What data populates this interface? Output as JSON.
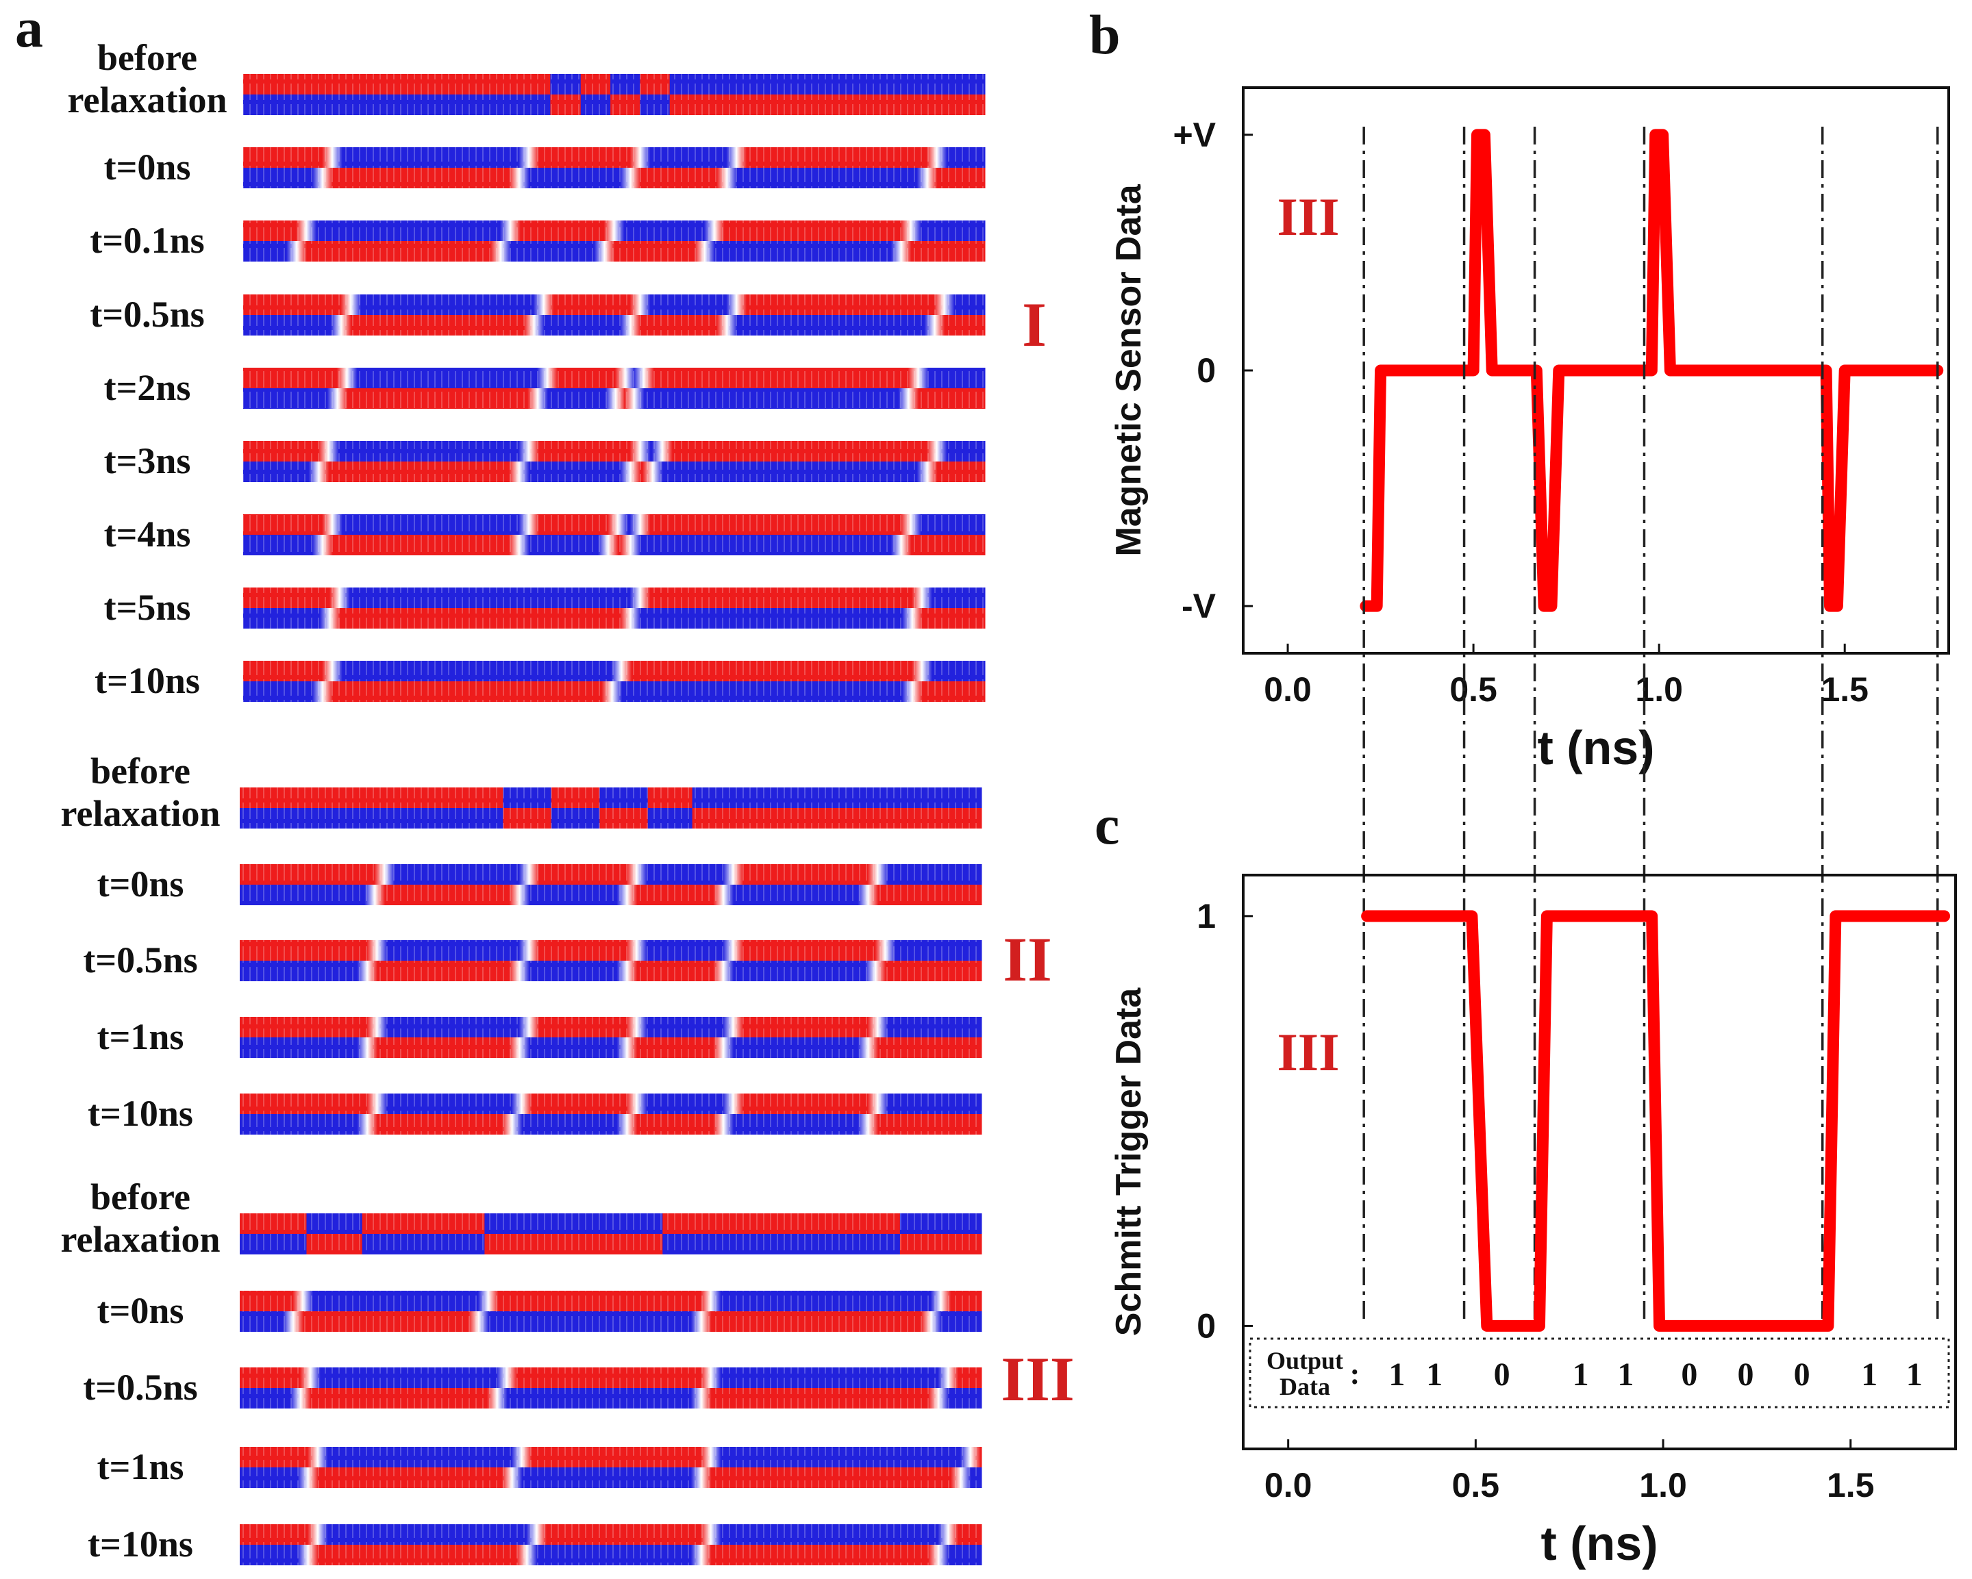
{
  "panel_labels": {
    "a": "a",
    "b": "b",
    "c": "c"
  },
  "colors": {
    "red": "#ee1c1c",
    "blue": "#2222dd",
    "curve": "#ff0000",
    "roman": "#d21f1f"
  },
  "groups": [
    {
      "roman": "I",
      "rows": [
        {
          "label": "before relaxation",
          "segments": [
            [
              "R",
              0.0
            ],
            [
              "B",
              0.414
            ],
            [
              "R",
              0.455
            ],
            [
              "B",
              0.495
            ],
            [
              "R",
              0.535
            ],
            [
              "B",
              0.575
            ]
          ]
        },
        {
          "label": "t=0ns",
          "segments": [
            [
              "R",
              0.0
            ],
            [
              "B",
              0.12
            ],
            [
              "R",
              0.385
            ],
            [
              "B",
              0.535
            ],
            [
              "R",
              0.665
            ],
            [
              "B",
              0.935
            ]
          ]
        },
        {
          "label": "t=0.1ns",
          "segments": [
            [
              "R",
              0.0
            ],
            [
              "B",
              0.085
            ],
            [
              "R",
              0.36
            ],
            [
              "B",
              0.5
            ],
            [
              "R",
              0.635
            ],
            [
              "B",
              0.9
            ]
          ]
        },
        {
          "label": "t=0.5ns",
          "segments": [
            [
              "R",
              0.0
            ],
            [
              "B",
              0.145
            ],
            [
              "R",
              0.405
            ],
            [
              "B",
              0.535
            ],
            [
              "R",
              0.665
            ],
            [
              "B",
              0.945
            ]
          ]
        },
        {
          "label": "t=2ns",
          "segments": [
            [
              "R",
              0.0
            ],
            [
              "B",
              0.14
            ],
            [
              "R",
              0.41
            ],
            [
              "B",
              0.515
            ],
            [
              "R",
              0.54
            ],
            [
              "B",
              0.91
            ]
          ]
        },
        {
          "label": "t=3ns",
          "segments": [
            [
              "R",
              0.0
            ],
            [
              "B",
              0.115
            ],
            [
              "R",
              0.385
            ],
            [
              "B",
              0.535
            ],
            [
              "R",
              0.565
            ],
            [
              "B",
              0.935
            ]
          ]
        },
        {
          "label": "t=4ns",
          "segments": [
            [
              "R",
              0.0
            ],
            [
              "B",
              0.12
            ],
            [
              "R",
              0.385
            ],
            [
              "B",
              0.505
            ],
            [
              "R",
              0.535
            ],
            [
              "B",
              0.9
            ]
          ]
        },
        {
          "label": "t=5ns",
          "segments": [
            [
              "R",
              0.0
            ],
            [
              "B",
              0.13
            ],
            [
              "R",
              0.535
            ],
            [
              "B",
              0.915
            ]
          ]
        },
        {
          "label": "t=10ns",
          "segments": [
            [
              "R",
              0.0
            ],
            [
              "B",
              0.12
            ],
            [
              "R",
              0.51
            ],
            [
              "B",
              0.915
            ]
          ]
        }
      ]
    },
    {
      "roman": "II",
      "rows": [
        {
          "label": "before relaxation",
          "segments": [
            [
              "R",
              0.0
            ],
            [
              "B",
              0.355
            ],
            [
              "R",
              0.42
            ],
            [
              "B",
              0.485
            ],
            [
              "R",
              0.55
            ],
            [
              "B",
              0.61
            ]
          ]
        },
        {
          "label": "t=0ns",
          "segments": [
            [
              "R",
              0.0
            ],
            [
              "B",
              0.195
            ],
            [
              "R",
              0.39
            ],
            [
              "B",
              0.535
            ],
            [
              "R",
              0.665
            ],
            [
              "B",
              0.86
            ]
          ]
        },
        {
          "label": "t=0.5ns",
          "segments": [
            [
              "R",
              0.0
            ],
            [
              "B",
              0.185
            ],
            [
              "R",
              0.39
            ],
            [
              "B",
              0.535
            ],
            [
              "R",
              0.665
            ],
            [
              "B",
              0.87
            ]
          ]
        },
        {
          "label": "t=1ns",
          "segments": [
            [
              "R",
              0.0
            ],
            [
              "B",
              0.185
            ],
            [
              "R",
              0.39
            ],
            [
              "B",
              0.535
            ],
            [
              "R",
              0.665
            ],
            [
              "B",
              0.86
            ]
          ]
        },
        {
          "label": "t=10ns",
          "segments": [
            [
              "R",
              0.0
            ],
            [
              "B",
              0.185
            ],
            [
              "R",
              0.38
            ],
            [
              "B",
              0.535
            ],
            [
              "R",
              0.665
            ],
            [
              "B",
              0.86
            ]
          ]
        }
      ]
    },
    {
      "roman": "III",
      "rows": [
        {
          "label": "before relaxation",
          "segments": [
            [
              "R",
              0.0
            ],
            [
              "B",
              0.09
            ],
            [
              "R",
              0.165
            ],
            [
              "B",
              0.33
            ],
            [
              "R",
              0.57
            ],
            [
              "B",
              0.89
            ]
          ]
        },
        {
          "label": "t=0ns",
          "segments": [
            [
              "R",
              0.0
            ],
            [
              "B",
              0.085
            ],
            [
              "R",
              0.335
            ],
            [
              "B",
              0.635
            ],
            [
              "R",
              0.945
            ]
          ]
        },
        {
          "label": "t=0.5ns",
          "segments": [
            [
              "R",
              0.0
            ],
            [
              "B",
              0.095
            ],
            [
              "R",
              0.36
            ],
            [
              "B",
              0.635
            ],
            [
              "R",
              0.955
            ]
          ]
        },
        {
          "label": "t=1ns",
          "segments": [
            [
              "R",
              0.0
            ],
            [
              "B",
              0.105
            ],
            [
              "R",
              0.38
            ],
            [
              "B",
              0.635
            ],
            [
              "R",
              0.985
            ]
          ]
        },
        {
          "label": "t=10ns",
          "segments": [
            [
              "R",
              0.0
            ],
            [
              "B",
              0.105
            ],
            [
              "R",
              0.4
            ],
            [
              "B",
              0.635
            ],
            [
              "R",
              0.955
            ]
          ]
        }
      ]
    }
  ],
  "chart_data": [
    {
      "panel": "b",
      "type": "line",
      "xlabel": "t (ns)",
      "ylabel": "Magnetic Sensor Data",
      "xlim": [
        -0.12,
        1.78
      ],
      "ylim": [
        -1.2,
        1.2
      ],
      "xticks": [
        0.0,
        0.5,
        1.0,
        1.5
      ],
      "xtick_labels": [
        "0.0",
        "0.5",
        "1.0",
        "1.5"
      ],
      "yticks": [
        1,
        0,
        -1
      ],
      "ytick_labels": [
        "+V",
        "0",
        "-V"
      ],
      "annotation": "III",
      "dash_dot_lines_x": [
        0.205,
        0.475,
        0.665,
        0.96,
        1.44,
        1.75
      ],
      "x": [
        0.21,
        0.24,
        0.25,
        0.5,
        0.51,
        0.53,
        0.55,
        0.67,
        0.69,
        0.71,
        0.73,
        0.98,
        0.99,
        1.01,
        1.03,
        1.45,
        1.46,
        1.48,
        1.5,
        1.75
      ],
      "y": [
        -1,
        -1,
        0,
        0,
        1,
        1,
        0,
        0,
        -1,
        -1,
        0,
        0,
        1,
        1,
        0,
        0,
        -1,
        -1,
        0,
        0
      ]
    },
    {
      "panel": "c",
      "type": "line",
      "xlabel": "t (ns)",
      "ylabel": "Schmitt Trigger Data",
      "xlim": [
        -0.12,
        1.78
      ],
      "ylim": [
        -0.3,
        1.1
      ],
      "xticks": [
        0.0,
        0.5,
        1.0,
        1.5
      ],
      "xtick_labels": [
        "0.0",
        "0.5",
        "1.0",
        "1.5"
      ],
      "yticks": [
        1,
        0
      ],
      "ytick_labels": [
        "1",
        "0"
      ],
      "annotation": "III",
      "dash_dot_lines_x": [
        0.205,
        0.475,
        0.665,
        0.96,
        1.44,
        1.75
      ],
      "x": [
        0.21,
        0.49,
        0.53,
        0.67,
        0.69,
        0.97,
        0.99,
        1.44,
        1.46,
        1.75
      ],
      "y": [
        1,
        1,
        0,
        0,
        1,
        1,
        0,
        0,
        1,
        1
      ],
      "output_label": [
        "Output",
        "Data"
      ],
      "output_bits": [
        {
          "x": 0.29,
          "bit": "1"
        },
        {
          "x": 0.39,
          "bit": "1"
        },
        {
          "x": 0.57,
          "bit": "0"
        },
        {
          "x": 0.78,
          "bit": "1"
        },
        {
          "x": 0.9,
          "bit": "1"
        },
        {
          "x": 1.07,
          "bit": "0"
        },
        {
          "x": 1.22,
          "bit": "0"
        },
        {
          "x": 1.37,
          "bit": "0"
        },
        {
          "x": 1.55,
          "bit": "1"
        },
        {
          "x": 1.67,
          "bit": "1"
        }
      ]
    }
  ]
}
